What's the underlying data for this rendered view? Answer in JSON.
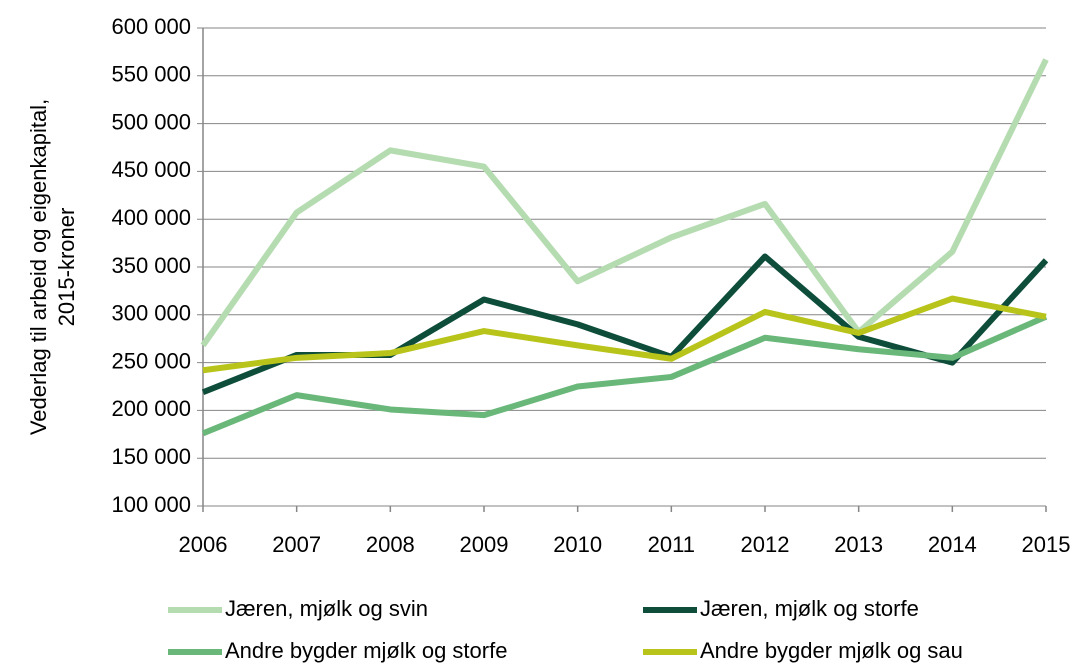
{
  "chart_data": {
    "type": "line",
    "ylabel": [
      "Vederlag til arbeid og eigenkapital,",
      "2015-kroner"
    ],
    "categories": [
      "2006",
      "2007",
      "2008",
      "2009",
      "2010",
      "2011",
      "2012",
      "2013",
      "2014",
      "2015"
    ],
    "series": [
      {
        "name": "Jæren, mjølk og svin",
        "color": "#b5dcb0",
        "values": [
          268000,
          407000,
          472000,
          455000,
          335000,
          381000,
          416000,
          282000,
          366000,
          567000
        ]
      },
      {
        "name": "Jæren, mjølk og storfe",
        "color": "#0d4d3a",
        "values": [
          219000,
          258000,
          258000,
          316000,
          290000,
          256000,
          361000,
          277000,
          250000,
          357000
        ]
      },
      {
        "name": "Andre bygder mjølk og storfe",
        "color": "#6ab77a",
        "values": [
          176000,
          216000,
          201000,
          195000,
          225000,
          235000,
          276000,
          264000,
          255000,
          298000
        ]
      },
      {
        "name": "Andre bygder mjølk og sau",
        "color": "#b8c41a",
        "values": [
          242000,
          255000,
          260000,
          283000,
          268000,
          254000,
          303000,
          281000,
          317000,
          298000
        ]
      }
    ],
    "ylim": [
      100000,
      600000
    ],
    "yticks": [
      {
        "value": 100000,
        "label": "100 000"
      },
      {
        "value": 150000,
        "label": "150 000"
      },
      {
        "value": 200000,
        "label": "200 000"
      },
      {
        "value": 250000,
        "label": "250 000"
      },
      {
        "value": 300000,
        "label": "300 000"
      },
      {
        "value": 350000,
        "label": "350 000"
      },
      {
        "value": 400000,
        "label": "400 000"
      },
      {
        "value": 450000,
        "label": "450 000"
      },
      {
        "value": 500000,
        "label": "500 000"
      },
      {
        "value": 550000,
        "label": "550 000"
      },
      {
        "value": 600000,
        "label": "600 000"
      }
    ],
    "grid": true
  }
}
